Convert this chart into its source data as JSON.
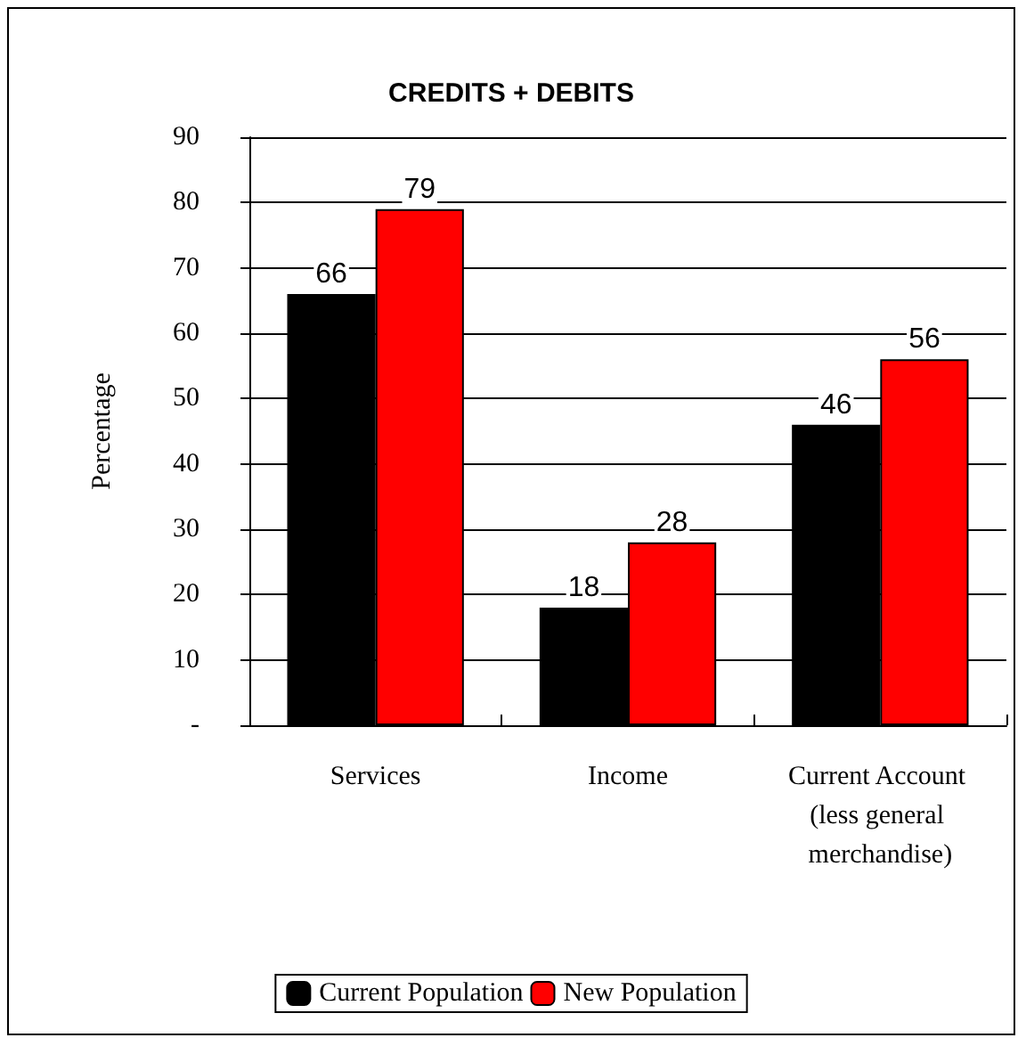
{
  "chart_data": {
    "type": "bar",
    "title": "CREDITS + DEBITS",
    "ylabel": "Percentage",
    "categories": [
      "Services",
      "Income",
      "Current Account (less general merchandise)"
    ],
    "series": [
      {
        "name": "Current Population",
        "color": "#000000",
        "values": [
          66,
          18,
          46
        ]
      },
      {
        "name": "New Population",
        "color": "#ff0000",
        "values": [
          79,
          28,
          56
        ]
      }
    ],
    "ylim": [
      0,
      90
    ],
    "yticks": [
      {
        "value": 0,
        "label": "-"
      },
      10,
      20,
      30,
      40,
      50,
      60,
      70,
      80,
      90
    ],
    "grid": "y",
    "legend": "bottom",
    "data_labels": true
  }
}
